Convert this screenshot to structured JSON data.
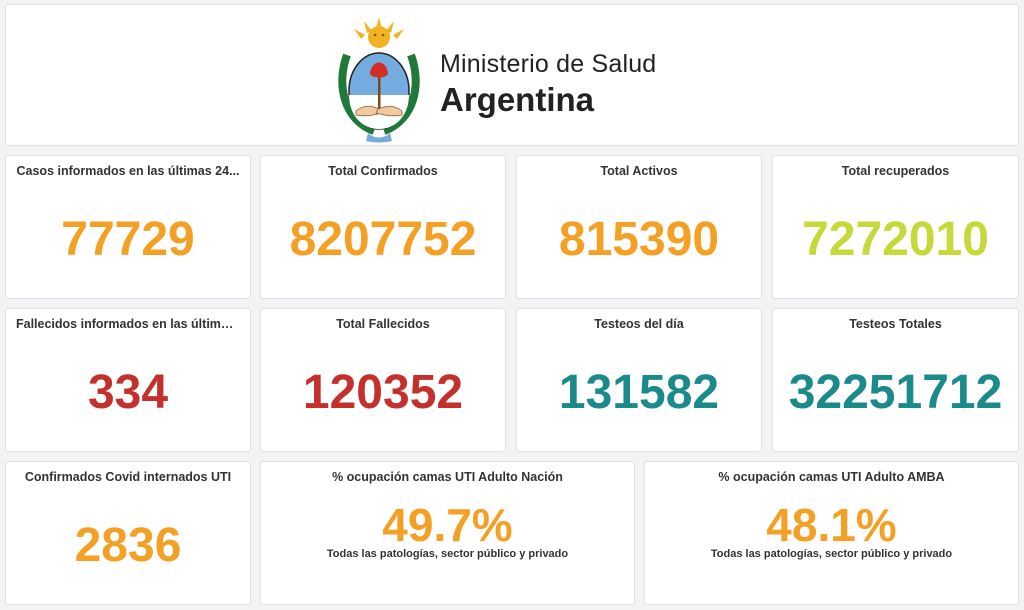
{
  "header": {
    "logo_alt": "Escudo de la República Argentina",
    "brand_line1": "Ministerio de Salud",
    "brand_line2": "Argentina"
  },
  "colors": {
    "orange": "#f4a024",
    "yellow_green": "#c7d83a",
    "red": "#c4302b",
    "teal": "#1a8a8b"
  },
  "stats_row1": [
    {
      "title": "Casos informados en las últimas 24...",
      "value": "77729",
      "color": "#f4a024"
    },
    {
      "title": "Total Confirmados",
      "value": "8207752",
      "color": "#f4a024"
    },
    {
      "title": "Total Activos",
      "value": "815390",
      "color": "#f4a024"
    },
    {
      "title": "Total recuperados",
      "value": "7272010",
      "color": "#c7d83a"
    }
  ],
  "stats_row2": [
    {
      "title": "Fallecidos informados en las últimas...",
      "value": "334",
      "color": "#c4302b"
    },
    {
      "title": "Total Fallecidos",
      "value": "120352",
      "color": "#c4302b"
    },
    {
      "title": "Testeos del día",
      "value": "131582",
      "color": "#1a8a8b"
    },
    {
      "title": "Testeos Totales",
      "value": "32251712",
      "color": "#1a8a8b"
    }
  ],
  "stats_row3": {
    "uti": {
      "title": "Confirmados Covid internados UTI",
      "value": "2836",
      "color": "#f4a024"
    },
    "nacion": {
      "title": "% ocupación camas UTI Adulto Nación",
      "value": "49.7%",
      "subtitle": "Todas las patologías, sector público y privado",
      "color": "#f4a024"
    },
    "amba": {
      "title": "% ocupación camas UTI Adulto AMBA",
      "value": "48.1%",
      "subtitle": "Todas las patologías, sector público y privado",
      "color": "#f4a024"
    }
  }
}
